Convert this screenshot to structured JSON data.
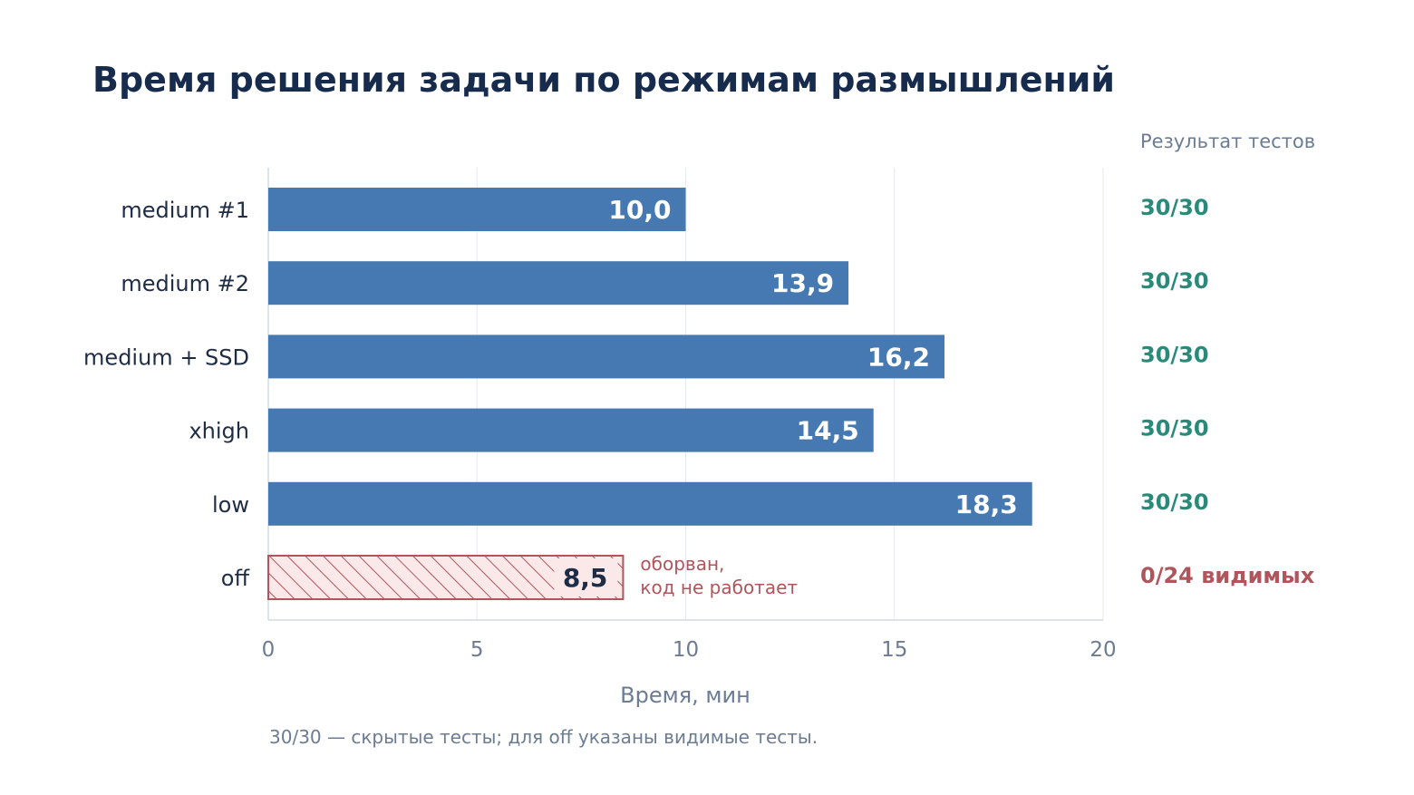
{
  "colors": {
    "bar": "#4678b2",
    "failed_bar_stroke": "#b0555c",
    "failed_bar_fill": "#fbe9ea",
    "failed_text": "#b0555c",
    "pass_text": "#2a8a79",
    "grid": "#e5e9f0",
    "axis": "#c9d2de",
    "title": "#172b4d",
    "muted": "#6b7c93",
    "dark_label": "#1e2d45"
  },
  "chart_data": {
    "type": "bar",
    "orientation": "horizontal",
    "title": "Время решения задачи по режимам размышлений",
    "xlabel": "Время, мин",
    "xlim": [
      0,
      20
    ],
    "xticks": [
      "0",
      "5",
      "10",
      "15",
      "20"
    ],
    "grid": true,
    "results_header": "Результат тестов",
    "footnote": "30/30 — скрытые тесты; для off указаны видимые тесты.",
    "bars": [
      {
        "category": "medium #1",
        "value": 10.0,
        "value_label": "10,0",
        "result": "30/30",
        "status": "pass"
      },
      {
        "category": "medium #2",
        "value": 13.9,
        "value_label": "13,9",
        "result": "30/30",
        "status": "pass"
      },
      {
        "category": "medium + SSD",
        "value": 16.2,
        "value_label": "16,2",
        "result": "30/30",
        "status": "pass"
      },
      {
        "category": "xhigh",
        "value": 14.5,
        "value_label": "14,5",
        "result": "30/30",
        "status": "pass"
      },
      {
        "category": "low",
        "value": 18.3,
        "value_label": "18,3",
        "result": "30/30",
        "status": "pass"
      },
      {
        "category": "off",
        "value": 8.5,
        "value_label": "8,5",
        "result": "0/24 видимых",
        "status": "fail",
        "note_lines": [
          "оборван,",
          "код не работает"
        ]
      }
    ]
  }
}
